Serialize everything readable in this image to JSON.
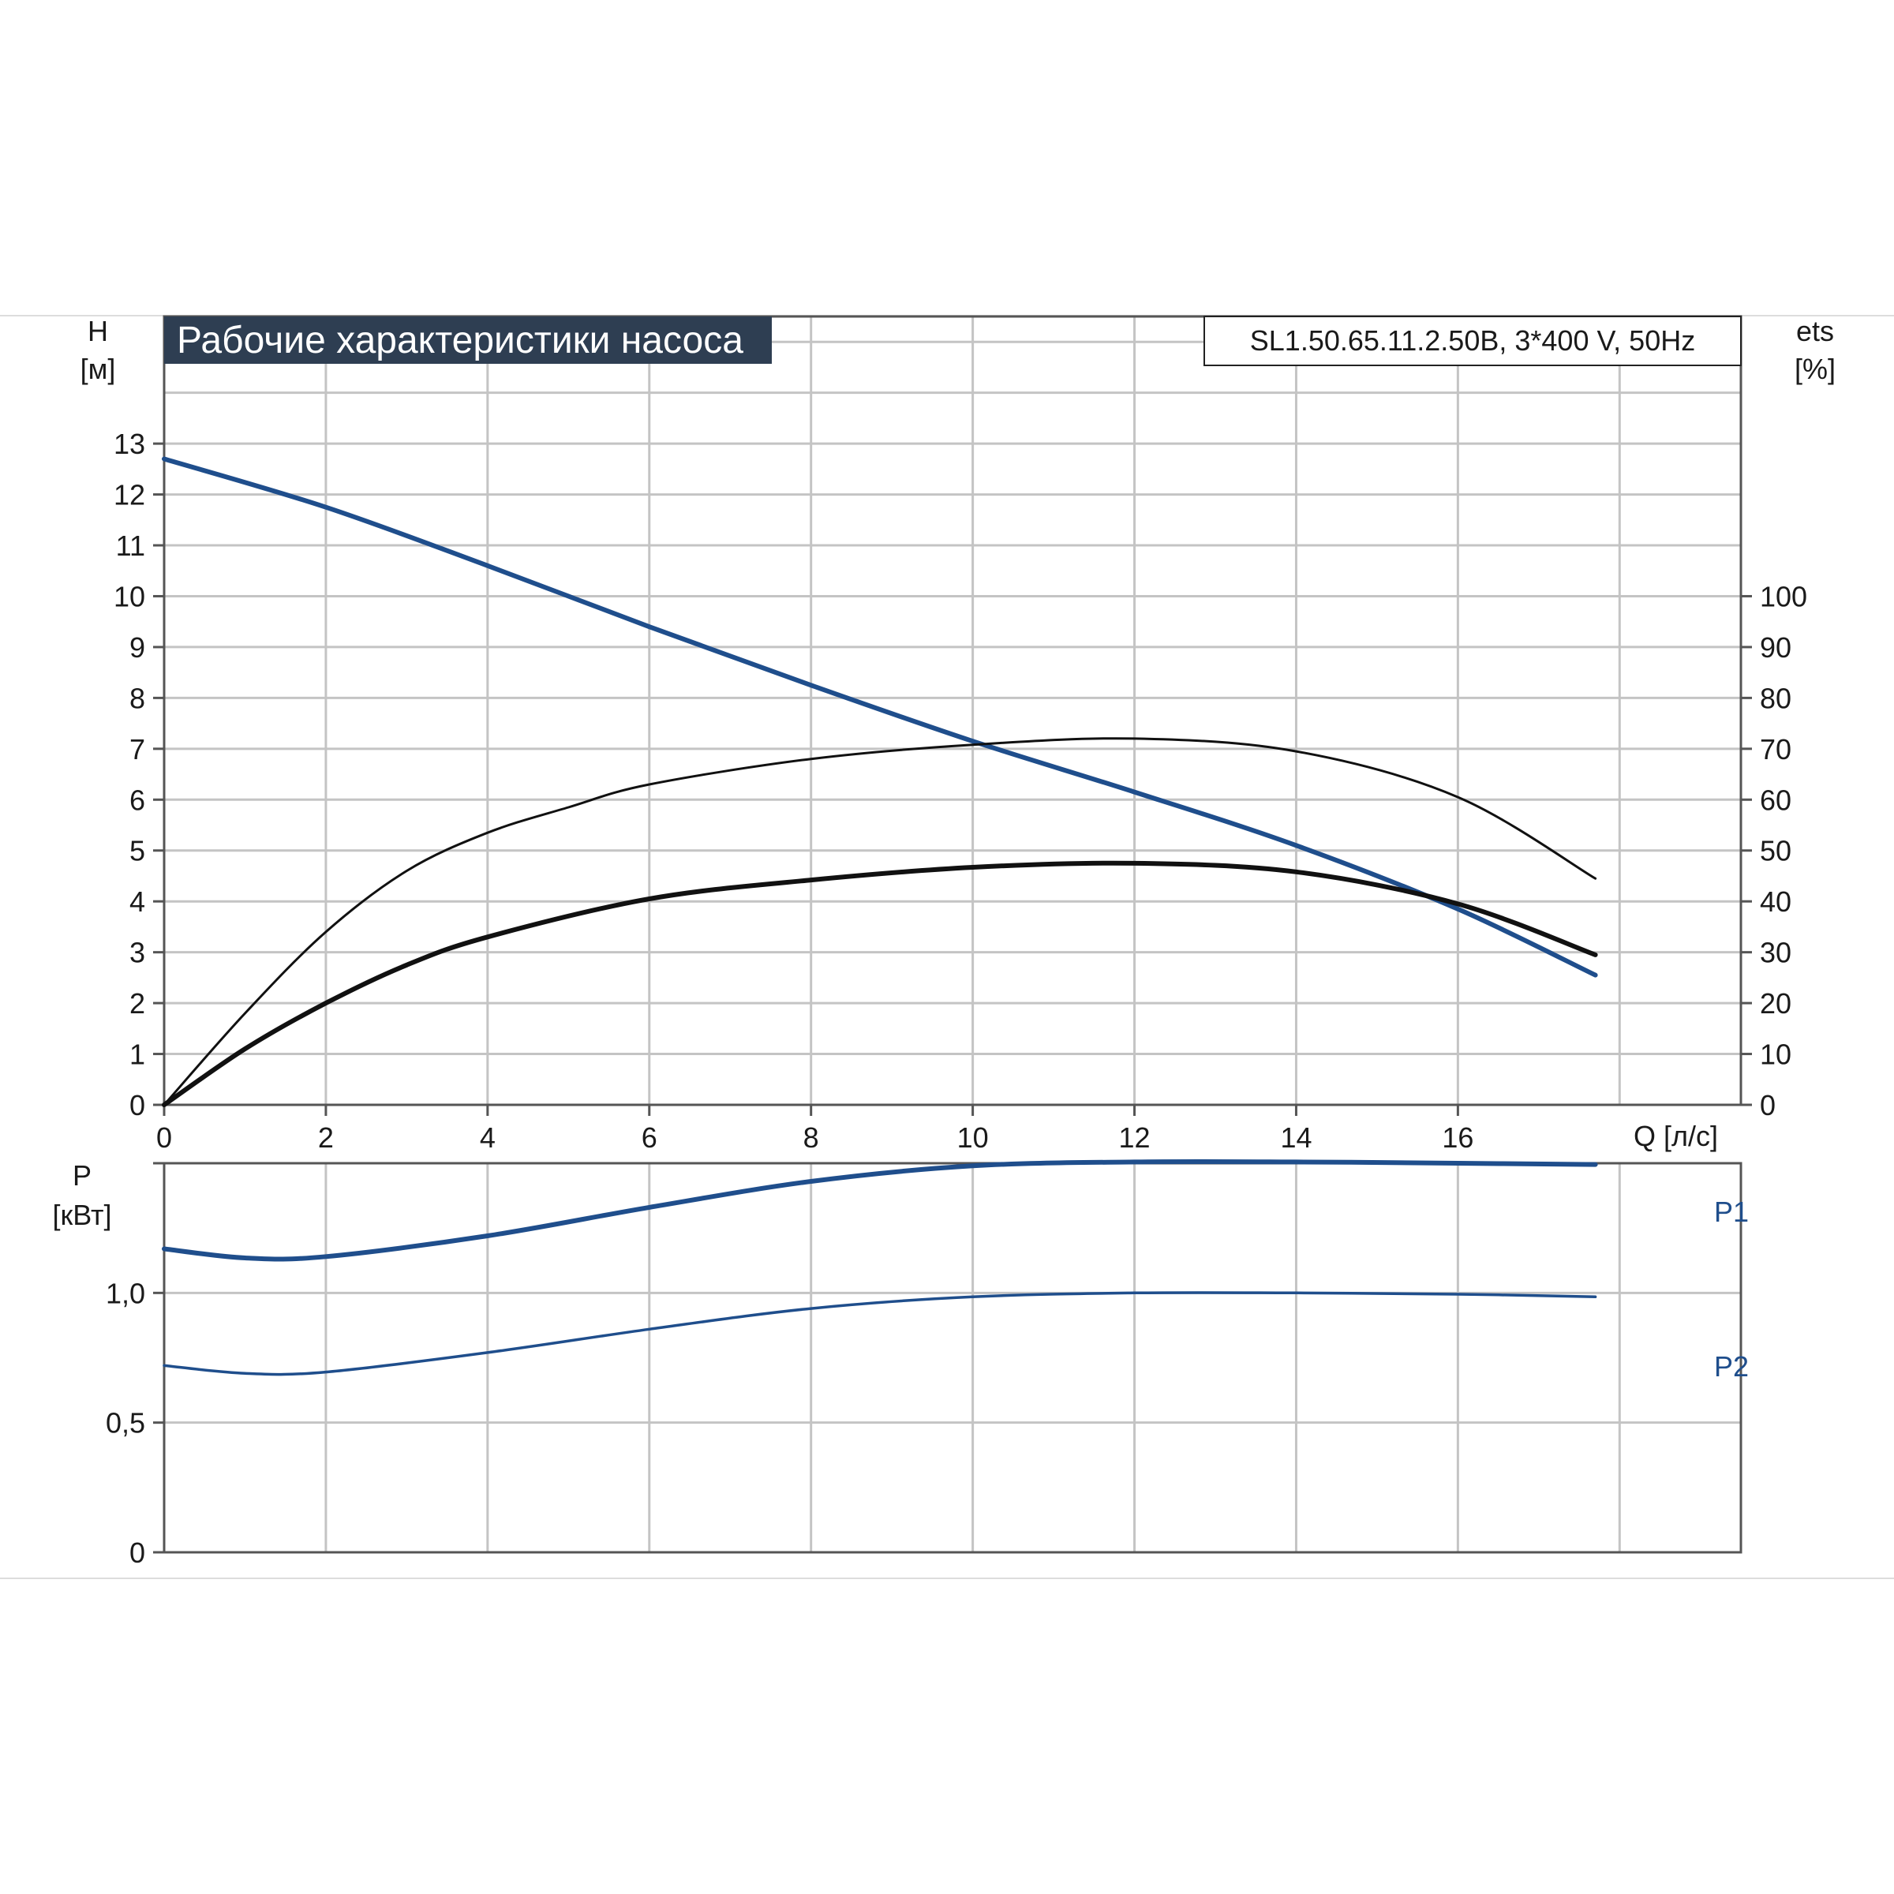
{
  "chart_data": [
    {
      "type": "line",
      "title": "Рабочие характеристики насоса",
      "model": "SL1.50.65.11.2.50B, 3*400 V, 50Hz",
      "ylabel": "H",
      "yunit": "[м]",
      "y2label": "ets",
      "y2unit": "[%]",
      "xlabel": "Q [л/с]",
      "xlim": [
        0,
        19.5
      ],
      "ylim": [
        0,
        15.5
      ],
      "y2lim": [
        0,
        155
      ],
      "grid": true,
      "x_ticks": [
        "0",
        "2",
        "4",
        "6",
        "8",
        "10",
        "12",
        "14",
        "16"
      ],
      "y_ticks": [
        "0",
        "1",
        "2",
        "3",
        "4",
        "5",
        "6",
        "7",
        "8",
        "9",
        "10",
        "11",
        "12",
        "13"
      ],
      "y2_ticks": [
        "0",
        "10",
        "20",
        "30",
        "40",
        "50",
        "60",
        "70",
        "80",
        "90",
        "100"
      ],
      "series": [
        {
          "role": "head",
          "axis": "y",
          "color": "#1f4e8c",
          "x": [
            0,
            2,
            4,
            6,
            8,
            10,
            12,
            14,
            16,
            17.7
          ],
          "y": [
            12.7,
            11.75,
            10.6,
            9.4,
            8.25,
            7.15,
            6.15,
            5.1,
            3.85,
            2.55
          ]
        },
        {
          "role": "efficiency-pump",
          "axis": "y2",
          "color": "#111111",
          "x": [
            0,
            1,
            2,
            3,
            4,
            5,
            6,
            8,
            10,
            12,
            14,
            16,
            17.7
          ],
          "y": [
            0,
            18,
            34,
            46,
            53.5,
            58.5,
            63,
            68,
            70.8,
            72,
            69.5,
            60.5,
            44.5
          ]
        },
        {
          "role": "efficiency-total",
          "axis": "y2",
          "color": "#111111",
          "x": [
            0,
            1,
            2,
            3,
            4,
            6,
            8,
            10,
            12,
            14,
            16,
            17.7
          ],
          "y": [
            0,
            11,
            20,
            27.5,
            33,
            40.5,
            44.2,
            46.7,
            47.5,
            45.8,
            39.5,
            29.5
          ]
        }
      ]
    },
    {
      "type": "line",
      "ylabel": "P",
      "yunit": "[кВт]",
      "xlim": [
        0,
        19.5
      ],
      "ylim": [
        0,
        1.5
      ],
      "grid": true,
      "y_ticks": [
        "0",
        "0,5",
        "1,0"
      ],
      "series": [
        {
          "name": "P1",
          "color": "#1f4e8c",
          "x": [
            0,
            1,
            2,
            4,
            6,
            8,
            10,
            12,
            14,
            16,
            17.7
          ],
          "y": [
            1.17,
            1.135,
            1.14,
            1.22,
            1.33,
            1.43,
            1.49,
            1.505,
            1.505,
            1.5,
            1.495
          ]
        },
        {
          "name": "P2",
          "color": "#1f4e8c",
          "x": [
            0,
            1,
            2,
            4,
            6,
            8,
            10,
            12,
            14,
            16,
            17.7
          ],
          "y": [
            0.72,
            0.69,
            0.695,
            0.77,
            0.86,
            0.94,
            0.985,
            1.0,
            1.0,
            0.995,
            0.985
          ]
        }
      ]
    }
  ]
}
